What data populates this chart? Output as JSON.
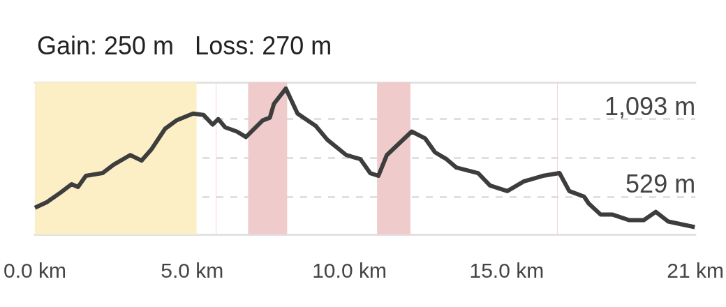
{
  "chart_data": {
    "type": "line",
    "title": "Gain: 250 m   Loss: 270 m",
    "x": [
      0,
      0.38,
      0.82,
      1.17,
      1.37,
      1.62,
      2.15,
      2.5,
      3.03,
      3.39,
      3.7,
      4.14,
      4.5,
      5.03,
      5.36,
      5.65,
      5.83,
      6.05,
      6.42,
      6.71,
      7.24,
      7.47,
      7.6,
      7.98,
      8.35,
      8.93,
      9.3,
      9.9,
      10.35,
      10.66,
      10.92,
      11.19,
      11.98,
      12.41,
      12.72,
      13.09,
      13.4,
      14.09,
      14.47,
      15.02,
      15.55,
      16.15,
      16.68,
      16.99,
      17.46,
      17.61,
      17.99,
      18.37,
      18.9,
      19.36,
      19.74,
      20.14,
      20.98
    ],
    "series": [
      {
        "color": "#3d3d3d",
        "values": [
          450,
          490,
          560,
          620,
          600,
          680,
          700,
          760,
          830,
          790,
          870,
          1020,
          1080,
          1130,
          1120,
          1050,
          1090,
          1030,
          1000,
          960,
          1080,
          1100,
          1200,
          1310,
          1130,
          1040,
          940,
          830,
          800,
          700,
          680,
          830,
          1000,
          950,
          850,
          800,
          740,
          700,
          610,
          570,
          640,
          680,
          700,
          570,
          530,
          480,
          400,
          400,
          360,
          360,
          420,
          350,
          310
        ]
      }
    ],
    "xlim": [
      0,
      21
    ],
    "xticks": [
      {
        "value": 0,
        "label": "0.0 km"
      },
      {
        "value": 5,
        "label": "5.0 km"
      },
      {
        "value": 10,
        "label": "10.0 km"
      },
      {
        "value": 15,
        "label": "15.0 km"
      },
      {
        "value": 21,
        "label": "21 km"
      }
    ],
    "ylim": [
      257,
      1355
    ],
    "yticks": [
      {
        "value": 529,
        "label": "529 m"
      },
      {
        "value": 811,
        "label": null
      },
      {
        "value": 1093,
        "label": "1,093 m"
      }
    ],
    "grid": "y",
    "marker": "none",
    "bands": [
      {
        "axis": "x",
        "from": 0,
        "to": 5.14,
        "color": "#fcefc6"
      },
      {
        "axis": "x",
        "from": 6.78,
        "to": 8.02,
        "color": "#efcbcb"
      },
      {
        "axis": "x",
        "from": 10.88,
        "to": 11.94,
        "color": "#efcbcb"
      }
    ],
    "ref_lines": [
      {
        "axis": "x",
        "value": 5.76,
        "color": "#f3d6d6"
      },
      {
        "axis": "x",
        "value": 16.6,
        "color": "#f3d6d6"
      }
    ]
  }
}
